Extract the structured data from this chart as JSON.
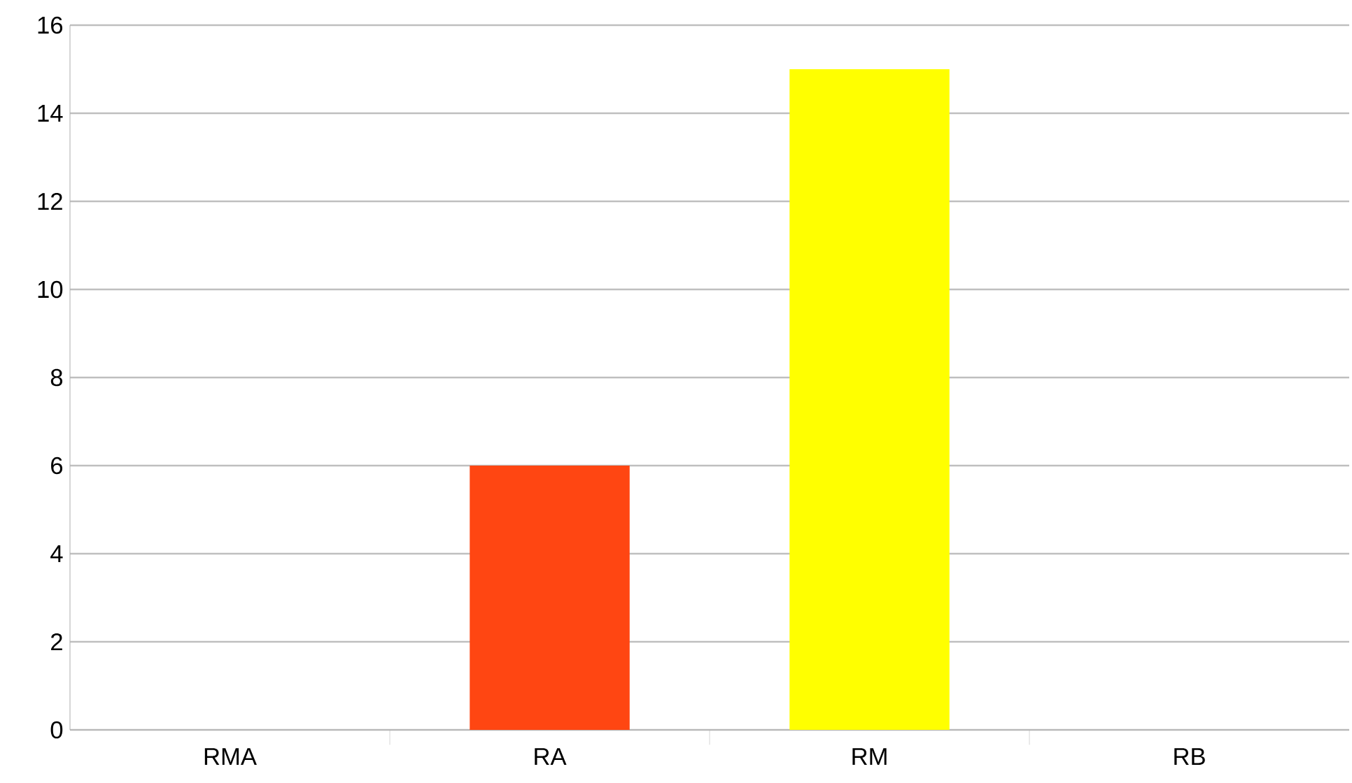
{
  "chart_data": {
    "type": "bar",
    "categories": [
      "RMA",
      "RA",
      "RM",
      "RB"
    ],
    "values": [
      0,
      6,
      15,
      0
    ],
    "colors": [
      "#004586",
      "#ff4612",
      "#ffff00",
      "#579d1c"
    ],
    "ylim": [
      0,
      16
    ],
    "yticks": [
      0,
      2,
      4,
      6,
      8,
      10,
      12,
      14,
      16
    ],
    "grid": "y"
  }
}
